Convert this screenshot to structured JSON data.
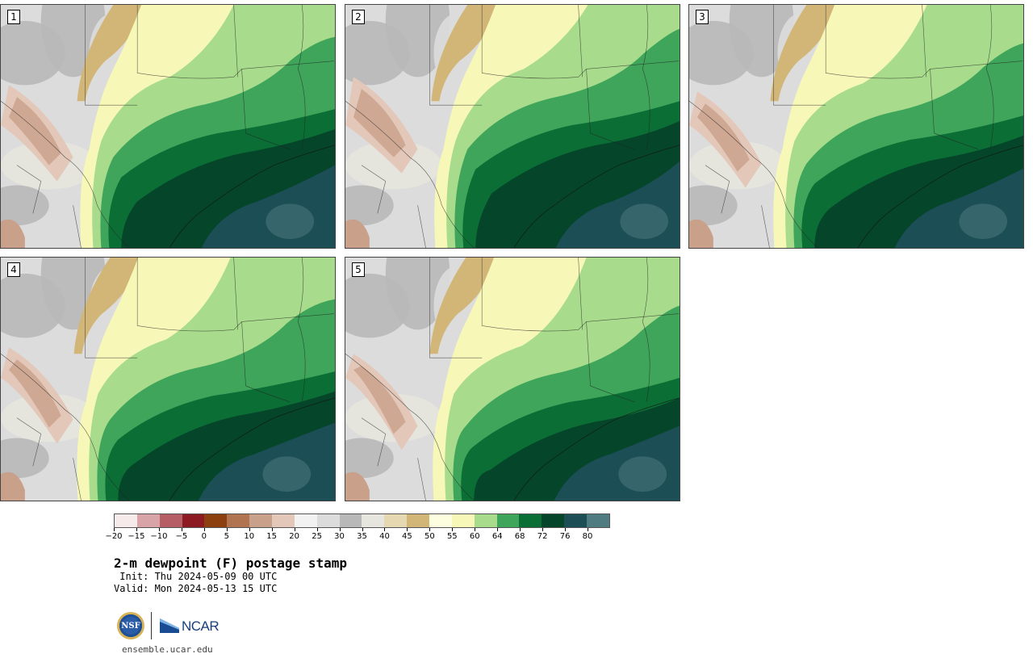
{
  "panels": [
    {
      "number": "1",
      "variant": 1
    },
    {
      "number": "2",
      "variant": 2
    },
    {
      "number": "3",
      "variant": 3
    },
    {
      "number": "4",
      "variant": 4
    },
    {
      "number": "5",
      "variant": 5
    }
  ],
  "colorbar": {
    "bins": [
      {
        "lo": -20,
        "hi": -15,
        "color": "#f6eaea"
      },
      {
        "lo": -15,
        "hi": -10,
        "color": "#d8a4a8"
      },
      {
        "lo": -10,
        "hi": -5,
        "color": "#b65e66"
      },
      {
        "lo": -5,
        "hi": 0,
        "color": "#8b1a22"
      },
      {
        "lo": 0,
        "hi": 5,
        "color": "#8c3f0f"
      },
      {
        "lo": 5,
        "hi": 10,
        "color": "#b07550"
      },
      {
        "lo": 10,
        "hi": 15,
        "color": "#c9a08a"
      },
      {
        "lo": 15,
        "hi": 20,
        "color": "#e3c8ba"
      },
      {
        "lo": 20,
        "hi": 25,
        "color": "#f2f2f2"
      },
      {
        "lo": 25,
        "hi": 30,
        "color": "#dcdcdc"
      },
      {
        "lo": 30,
        "hi": 35,
        "color": "#b8b8b8"
      },
      {
        "lo": 35,
        "hi": 40,
        "color": "#e6e6de"
      },
      {
        "lo": 40,
        "hi": 45,
        "color": "#e6d8b0"
      },
      {
        "lo": 45,
        "hi": 50,
        "color": "#d2b678"
      },
      {
        "lo": 50,
        "hi": 55,
        "color": "#fdfde0"
      },
      {
        "lo": 55,
        "hi": 60,
        "color": "#f7f8b8"
      },
      {
        "lo": 60,
        "hi": 64,
        "color": "#a8dc8c"
      },
      {
        "lo": 64,
        "hi": 68,
        "color": "#3fa55a"
      },
      {
        "lo": 68,
        "hi": 72,
        "color": "#0b6e35"
      },
      {
        "lo": 72,
        "hi": 76,
        "color": "#05452a"
      },
      {
        "lo": 76,
        "hi": 80,
        "color": "#1c4e56"
      },
      {
        "lo": 80,
        "hi": 84,
        "color": "#4f7c80"
      }
    ],
    "tick_labels": [
      "−20",
      "−15",
      "−10",
      "−5",
      "0",
      "5",
      "10",
      "15",
      "20",
      "25",
      "30",
      "35",
      "40",
      "45",
      "50",
      "55",
      "60",
      "64",
      "68",
      "72",
      "76",
      "80"
    ]
  },
  "title": "2-m dewpoint (F) postage stamp",
  "init_line": " Init: Thu 2024-05-09 00 UTC",
  "valid_line": "Valid: Mon 2024-05-13 15 UTC",
  "logos": {
    "nsf_text": "NSF",
    "ncar_text": "NCAR"
  },
  "website": "ensemble.ucar.edu"
}
